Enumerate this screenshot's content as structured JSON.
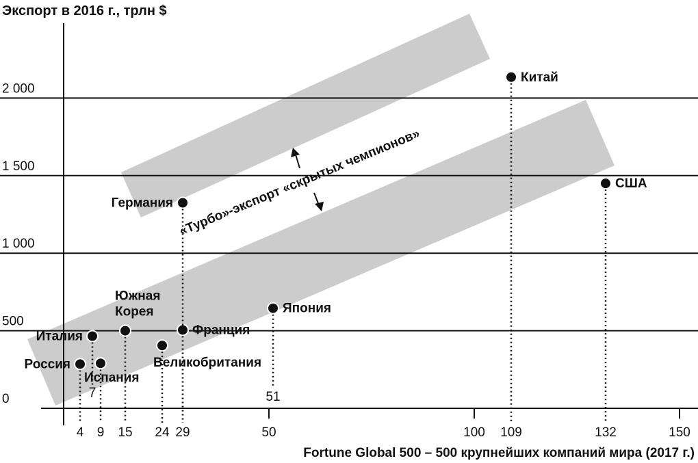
{
  "chart_data": {
    "type": "scatter",
    "title": "",
    "ylabel": "Экспорт в 2016 г., трлн $",
    "xlabel": "Fortune Global 500 – 500 крупнейших компаний мира (2017 г.)",
    "xlim": [
      0,
      150
    ],
    "ylim": [
      0,
      2000
    ],
    "y_ticks": [
      {
        "value": 0,
        "label": "0"
      },
      {
        "value": 500,
        "label": "500"
      },
      {
        "value": 1000,
        "label": "1 000"
      },
      {
        "value": 1500,
        "label": "1 500"
      },
      {
        "value": 2000,
        "label": "2 000"
      }
    ],
    "x_ticks": [
      {
        "value": 50,
        "label": "50"
      },
      {
        "value": 100,
        "label": "100"
      },
      {
        "value": 150,
        "label": "150"
      }
    ],
    "grid": "horizontal",
    "points": [
      {
        "name": "Россия",
        "x": 4,
        "y": 285,
        "x_label": "4",
        "label_side": "left"
      },
      {
        "name": "Италия",
        "x": 7,
        "y": 465,
        "x_label": "7",
        "label_side": "left"
      },
      {
        "name": "Испания",
        "x": 9,
        "y": 290,
        "x_label": "9",
        "label_side": "below"
      },
      {
        "name": "Южная\nКорея",
        "x": 15,
        "y": 500,
        "x_label": "15",
        "label_side": "above"
      },
      {
        "name": "Великобритания",
        "x": 24,
        "y": 405,
        "x_label": "24",
        "label_side": "below-right"
      },
      {
        "name": "Франция",
        "x": 29,
        "y": 505,
        "x_label": "29",
        "label_side": "right"
      },
      {
        "name": "Германия",
        "x": 29,
        "y": 1325,
        "x_label": "29",
        "label_side": "left"
      },
      {
        "name": "Япония",
        "x": 51,
        "y": 645,
        "x_label": "51",
        "label_side": "right"
      },
      {
        "name": "Китай",
        "x": 109,
        "y": 2135,
        "x_label": "109",
        "label_side": "right"
      },
      {
        "name": "США",
        "x": 132,
        "y": 1450,
        "x_label": "132",
        "label_side": "right"
      }
    ],
    "annotation": "«Турбо»-экспорт «скрытых чемпионов»",
    "colors": {
      "band": "#cccccc",
      "point": "#111111",
      "axis": "#111111"
    }
  }
}
